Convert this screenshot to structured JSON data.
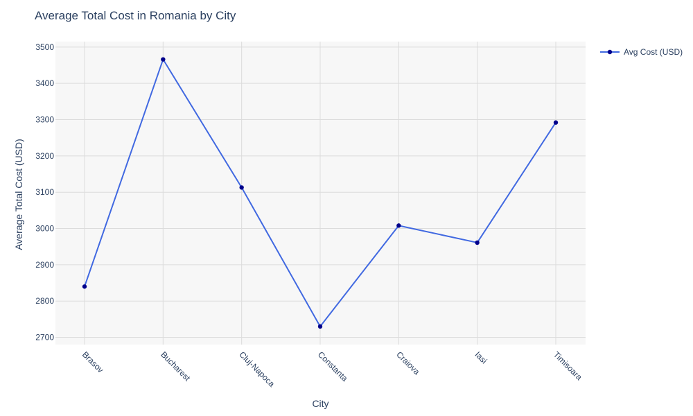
{
  "chart_data": {
    "type": "line",
    "title": "Average Total Cost in Romania by City",
    "xlabel": "City",
    "ylabel": "Average Total Cost (USD)",
    "categories": [
      "Brasov",
      "Bucharest",
      "Cluj-Napoca",
      "Constanta",
      "Craiova",
      "Iasi",
      "Timisoara"
    ],
    "series": [
      {
        "name": "Avg Cost (USD)",
        "values": [
          2840,
          3466,
          3113,
          2730,
          3008,
          2961,
          3292
        ]
      }
    ],
    "ylim": [
      2680,
      3515
    ],
    "yticks": [
      2700,
      2800,
      2900,
      3000,
      3100,
      3200,
      3300,
      3400,
      3500
    ],
    "grid": true,
    "legend_position": "top-right",
    "colors": {
      "line": "#4169e1",
      "marker": "#00008b",
      "plot_background": "#f7f7f7",
      "grid": "#dcdcdc",
      "text": "#2a3f5f"
    }
  }
}
